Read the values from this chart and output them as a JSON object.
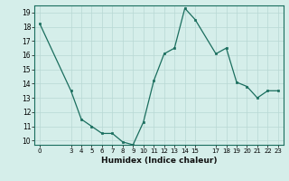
{
  "x": [
    0,
    3,
    4,
    5,
    6,
    7,
    8,
    9,
    10,
    11,
    12,
    13,
    14,
    15,
    17,
    18,
    19,
    20,
    21,
    22,
    23
  ],
  "y": [
    18.2,
    13.5,
    11.5,
    11.0,
    10.5,
    10.5,
    9.9,
    9.7,
    11.3,
    14.2,
    16.1,
    16.5,
    19.3,
    18.5,
    16.1,
    16.5,
    14.1,
    13.8,
    13.0,
    13.5,
    13.5
  ],
  "xlim": [
    -0.5,
    23.5
  ],
  "ylim": [
    9.7,
    19.5
  ],
  "yticks": [
    10,
    11,
    12,
    13,
    14,
    15,
    16,
    17,
    18,
    19
  ],
  "xticks": [
    0,
    3,
    4,
    5,
    6,
    7,
    8,
    9,
    10,
    11,
    12,
    13,
    14,
    15,
    17,
    18,
    19,
    20,
    21,
    22,
    23
  ],
  "xlabel": "Humidex (Indice chaleur)",
  "line_color": "#1a6e5e",
  "marker_color": "#1a6e5e",
  "bg_color": "#d5eeea",
  "grid_color_minor": "#c8e4e0",
  "grid_color_major": "#b8d8d4",
  "spine_color": "#1a6e5e"
}
